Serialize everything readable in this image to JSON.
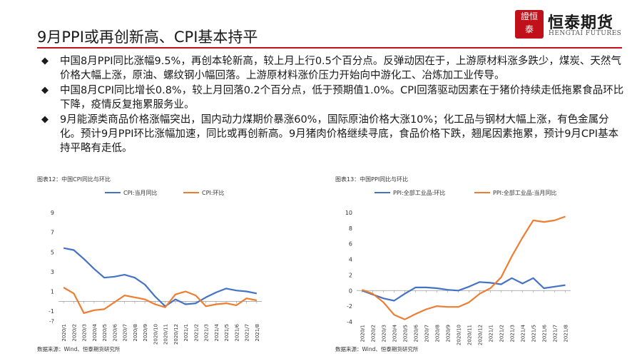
{
  "header": {
    "title": "9月PPI或再创新高、CPI基本持平",
    "logo": {
      "name": "恒泰期货",
      "en": "HENGTAI FUTURES",
      "seal": "證恒泰"
    },
    "accent": "#c0111a"
  },
  "bullets": [
    {
      "icon": "diamond-bullet-icon",
      "text": "中国8月PPI同比涨幅9.5%，再创本轮新高，较上月上行0.5个百分点。反弹动因在于，上游原材料涨多跌少，煤炭、天然气价格大幅上涨，原油、螺纹钢小幅回落。上游原材料涨价压力开始向中游化工、冶炼加工业传导。"
    },
    {
      "icon": "diamond-bullet-icon",
      "text": "中国8月CPI同比增长0.8%，较上月回落0.2个百分点，低于预期值1.0%。CPI回落驱动因素在于猪价持续走低拖累食品环比下降，疫情反复拖累服务业。"
    },
    {
      "icon": "diamond-bullet-icon",
      "text": " 9月能源类商品价格涨幅突出，国内动力煤期价暴涨60%，国际原油价格大涨10%；化工品与钢材大幅上涨，有色金属分化。预计9月PPI环比涨幅加速，同比或再创新高。9月猪肉价格继续寻底，食品价格下跌，翘尾因素拖累，预计9月CPI基本持平略有走低。"
    }
  ],
  "chart_data": [
    {
      "type": "line",
      "title": "图表12：中国CPI同比与环比",
      "source": "数据来源：Wind、恒泰期货研究所",
      "x": [
        "2020/1",
        "2020/2",
        "2020/3",
        "2020/4",
        "2020/5",
        "2020/6",
        "2020/7",
        "2020/8",
        "2020/9",
        "2020/10",
        "2020/11",
        "2020/12",
        "2021/1",
        "2021/2",
        "2021/3",
        "2021/4",
        "2021/5",
        "2021/6",
        "2021/7",
        "2021/8"
      ],
      "ylim": [
        -2,
        9
      ],
      "yticks": [
        -2,
        -1,
        1,
        3,
        5,
        7,
        9
      ],
      "ytick_labels": [
        "-?",
        "-1",
        "1",
        "3",
        "5",
        "7",
        "9"
      ],
      "legend_position": "top",
      "series": [
        {
          "name": "CPI:当月同比",
          "color": "#4472c4",
          "values": [
            5.4,
            5.2,
            4.3,
            3.3,
            2.4,
            2.5,
            2.7,
            2.4,
            1.7,
            0.5,
            -0.5,
            0.2,
            -0.3,
            -0.2,
            0.4,
            0.9,
            1.3,
            1.1,
            1.0,
            0.8
          ]
        },
        {
          "name": "CPI:环比",
          "color": "#ed7d31",
          "values": [
            1.4,
            0.8,
            -1.2,
            -0.9,
            -0.8,
            -0.1,
            0.6,
            0.4,
            0.2,
            -0.3,
            -0.6,
            0.7,
            1.0,
            0.6,
            -0.5,
            -0.3,
            -0.2,
            -0.4,
            0.3,
            0.1
          ]
        }
      ]
    },
    {
      "type": "line",
      "title": "图表13：中国PPI同比与环比",
      "source": "数据来源：Wind、恒泰期货研究所",
      "x": [
        "2020/1",
        "2020/2",
        "2020/3",
        "2020/4",
        "2020/5",
        "2020/6",
        "2020/7",
        "2020/8",
        "2020/9",
        "2020/10",
        "2020/11",
        "2020/12",
        "2021/1",
        "2021/2",
        "2021/3",
        "2021/4",
        "2021/5",
        "2021/6",
        "2021/7",
        "2021/8"
      ],
      "ylim": [
        -4,
        10
      ],
      "yticks": [
        -4,
        -2,
        0,
        2,
        4,
        6,
        8,
        10
      ],
      "ytick_labels": [
        "-4",
        "-2",
        "0",
        "2",
        "4",
        "6",
        "8",
        "10"
      ],
      "legend_position": "top",
      "series": [
        {
          "name": "PPI:全部工业品:环比",
          "color": "#4472c4",
          "values": [
            0.0,
            -0.5,
            -1.0,
            -1.3,
            -0.4,
            0.4,
            0.4,
            0.3,
            0.1,
            0.0,
            0.5,
            1.1,
            1.0,
            0.8,
            1.6,
            0.9,
            1.6,
            0.3,
            0.5,
            0.7
          ]
        },
        {
          "name": "PPI:全部工业品:当月同比",
          "color": "#ed7d31",
          "values": [
            0.1,
            -0.4,
            -1.5,
            -3.1,
            -3.7,
            -3.0,
            -2.4,
            -2.0,
            -2.1,
            -2.1,
            -1.5,
            -0.4,
            0.3,
            1.7,
            4.4,
            6.8,
            9.0,
            8.8,
            9.0,
            9.5
          ]
        }
      ]
    }
  ]
}
